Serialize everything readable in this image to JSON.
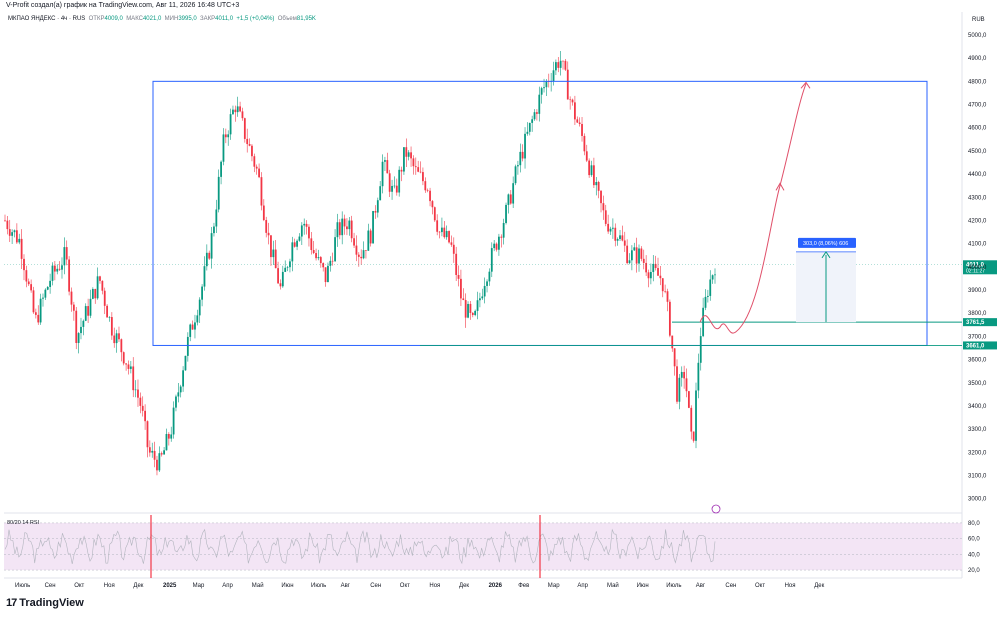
{
  "header": {
    "credit": "V-Profit создал(а) график на TradingView.com, Авг 11, 2026 16:48 UTC+3",
    "symbol": "МКПАО ЯНДЕКС · 4ч · RUS",
    "o_label": "ОТКР",
    "o_value": "4009,0",
    "h_label": "МАКС",
    "h_value": "4021,0",
    "l_label": "МИН",
    "l_value": "3995,0",
    "c_label": "ЗАКР",
    "c_value": "4011,0",
    "change": "+1,5 (+0,04%)",
    "vol_label": "Объем",
    "vol_value": "81,95K",
    "currency": "RUB"
  },
  "rsi_label": "80/20 14 RSI",
  "brand": {
    "logo": "17",
    "name": "TradingView"
  },
  "colors": {
    "up": "#089981",
    "down": "#f23645",
    "box": "#2962ff",
    "level": "#089981",
    "path": "#e0506a",
    "rsi_bg": "#f3e5f5",
    "rsi_line": "#b2b5be",
    "rsi_spike": "#f23645"
  },
  "chart_data": {
    "type": "candlestick",
    "x_labels": [
      "Июль",
      "Сен",
      "Окт",
      "Ноя",
      "Дек",
      "2025",
      "Мар",
      "Апр",
      "Май",
      "Июн",
      "Июль",
      "Авг",
      "Сен",
      "Окт",
      "Ноя",
      "Дек",
      "2026",
      "Фев",
      "Мар",
      "Апр",
      "Май",
      "Июн",
      "Июль",
      "Авг",
      "Сен",
      "Окт",
      "Ноя",
      "Дек"
    ],
    "y_ticks": [
      "5000,0",
      "4900,0",
      "4800,0",
      "4700,0",
      "4600,0",
      "4500,0",
      "4400,0",
      "4300,0",
      "4200,0",
      "4100,0",
      "4000,0",
      "3900,0",
      "3800,0",
      "3700,0",
      "3600,0",
      "3500,0",
      "3400,0",
      "3300,0",
      "3200,0",
      "3100,0",
      "3000,0"
    ],
    "y_range": [
      2960,
      5030
    ],
    "price_series_anchors": [
      [
        0,
        4200
      ],
      [
        4,
        4110
      ],
      [
        8,
        3760
      ],
      [
        12,
        3950
      ],
      [
        16,
        4050
      ],
      [
        19,
        3700
      ],
      [
        22,
        3820
      ],
      [
        25,
        3950
      ],
      [
        28,
        3750
      ],
      [
        32,
        3600
      ],
      [
        36,
        3400
      ],
      [
        38,
        3200
      ],
      [
        41,
        3150
      ],
      [
        44,
        3300
      ],
      [
        48,
        3650
      ],
      [
        52,
        3900
      ],
      [
        55,
        4150
      ],
      [
        58,
        4550
      ],
      [
        61,
        4700
      ],
      [
        64,
        4550
      ],
      [
        67,
        4400
      ],
      [
        70,
        4100
      ],
      [
        73,
        3900
      ],
      [
        76,
        4100
      ],
      [
        79,
        4200
      ],
      [
        82,
        4050
      ],
      [
        85,
        3950
      ],
      [
        88,
        4150
      ],
      [
        91,
        4200
      ],
      [
        94,
        4050
      ],
      [
        97,
        4150
      ],
      [
        100,
        4450
      ],
      [
        103,
        4300
      ],
      [
        106,
        4500
      ],
      [
        109,
        4400
      ],
      [
        112,
        4350
      ],
      [
        115,
        4150
      ],
      [
        118,
        4100
      ],
      [
        121,
        3850
      ],
      [
        124,
        3750
      ],
      [
        127,
        3950
      ],
      [
        130,
        4100
      ],
      [
        133,
        4250
      ],
      [
        136,
        4450
      ],
      [
        139,
        4600
      ],
      [
        142,
        4750
      ],
      [
        145,
        4850
      ],
      [
        147,
        4900
      ],
      [
        150,
        4700
      ],
      [
        153,
        4550
      ],
      [
        156,
        4350
      ],
      [
        159,
        4200
      ],
      [
        162,
        4150
      ],
      [
        165,
        4050
      ],
      [
        168,
        4050
      ],
      [
        171,
        3980
      ],
      [
        174,
        3950
      ],
      [
        176,
        3750
      ],
      [
        178,
        3450
      ],
      [
        180,
        3550
      ],
      [
        182,
        3200
      ],
      [
        184,
        3700
      ],
      [
        186,
        3900
      ],
      [
        188,
        4011
      ]
    ],
    "box": {
      "x_from": "2025 (start)",
      "x_to": "Окт (2026)",
      "top": 4800,
      "bottom": 3661,
      "line_color": "#2962ff"
    },
    "levels": [
      {
        "value": 3761.5,
        "label": "3761,5"
      },
      {
        "value": 3661.0,
        "label": "3661,0"
      }
    ],
    "last_price": {
      "value": 4011,
      "label": "4011,0",
      "countdown": "02:11:27"
    },
    "measure": {
      "from": 3761.5,
      "to": 4064.5,
      "label": "303,0 (8,06%) 606"
    },
    "projection_path": [
      [
        0,
        3761.5
      ],
      [
        3,
        3720
      ],
      [
        6,
        3740
      ],
      [
        10,
        3850
      ],
      [
        14,
        4200
      ],
      [
        18,
        4600
      ],
      [
        22,
        4780
      ]
    ],
    "rsi": {
      "levels": [
        80,
        60,
        40,
        20
      ],
      "labels": [
        "80,0",
        "60,0",
        "40,0",
        "20,0"
      ]
    }
  }
}
